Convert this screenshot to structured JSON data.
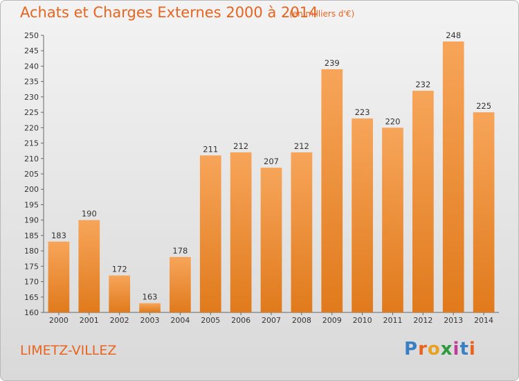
{
  "header": {
    "title": "Achats et Charges Externes 2000 à 2014",
    "subtitle": "(en milliers d'€)"
  },
  "footer": {
    "commune": "LIMETZ-VILLEZ",
    "brand": {
      "letters": [
        "P",
        "r",
        "o",
        "x",
        "i",
        "t",
        "i"
      ],
      "colors": [
        "#3a7fc4",
        "#e8641e",
        "#e8a21e",
        "#2f9a3d",
        "#c03a9a",
        "#3a7fc4",
        "#e8641e"
      ]
    }
  },
  "colors": {
    "bar_light": "#f7a55a",
    "bar_dark": "#e07a1c",
    "text": "#e8641e"
  },
  "chart_data": {
    "type": "bar",
    "categories": [
      "2000",
      "2001",
      "2002",
      "2003",
      "2004",
      "2005",
      "2006",
      "2007",
      "2008",
      "2009",
      "2010",
      "2011",
      "2012",
      "2013",
      "2014"
    ],
    "values": [
      183,
      190,
      172,
      163,
      178,
      211,
      212,
      207,
      212,
      239,
      223,
      220,
      232,
      248,
      225
    ],
    "ylim": [
      160,
      250
    ],
    "yticks": [
      160,
      165,
      170,
      175,
      180,
      185,
      190,
      195,
      200,
      205,
      210,
      215,
      220,
      225,
      230,
      235,
      240,
      245,
      250
    ],
    "grid": false,
    "data_labels": true
  }
}
